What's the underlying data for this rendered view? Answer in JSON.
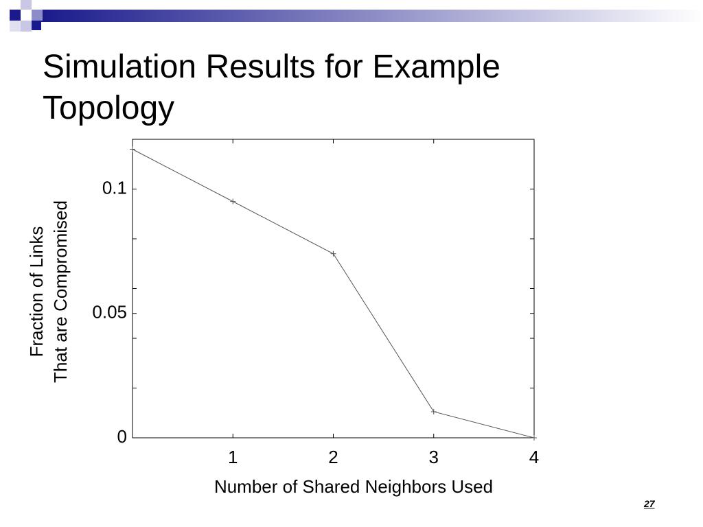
{
  "title": "Simulation Results for Example Topology",
  "page_number": "27",
  "chart_data": {
    "type": "line",
    "x_label": "Number of Shared Neighbors Used",
    "y_label": [
      "Fraction of Links",
      "That are Compromised"
    ],
    "x": [
      0,
      1,
      2,
      3,
      4
    ],
    "series": [
      {
        "color": "#555555",
        "values": [
          0.116,
          0.095,
          0.074,
          0.0105,
          0
        ]
      }
    ],
    "xlim": [
      0,
      4
    ],
    "xticks": [
      1,
      2,
      3,
      4
    ],
    "ylim": [
      0,
      0.12
    ],
    "yticks": [
      0,
      0.05,
      0.1
    ],
    "yminorticks": [
      0.02,
      0.04,
      0.06,
      0.08
    ],
    "grid": false
  }
}
